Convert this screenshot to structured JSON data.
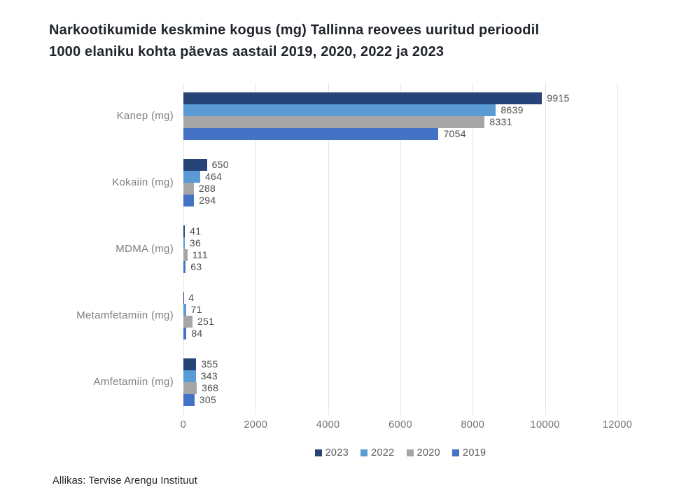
{
  "title_lines": [
    "Narkootikumide keskmine kogus (mg) Tallinna reovees uuritud perioodil",
    "1000 elaniku kohta päevas aastail 2019, 2020, 2022 ja 2023"
  ],
  "source": "Allikas: Tervise Arengu Instituut",
  "colors": {
    "grid": "#e4e4e6",
    "category_label": "#7f7f7f",
    "value_label": "#4d4d4d",
    "tick_label": "#6f6f6f",
    "legend_label": "#595959",
    "title": "#20242c"
  },
  "chart_data": {
    "type": "bar",
    "orientation": "horizontal",
    "title": "Narkootikumide keskmine kogus (mg) Tallinna reovees uuritud perioodil 1000 elaniku kohta päevas aastail 2019, 2020, 2022 ja 2023",
    "categories": [
      "Kanep (mg)",
      "Kokaiin (mg)",
      "MDMA (mg)",
      "Metamfetamiin (mg)",
      "Amfetamiin (mg)"
    ],
    "series": [
      {
        "name": "2023",
        "color": "#264478",
        "values": [
          9915,
          650,
          41,
          4,
          355
        ]
      },
      {
        "name": "2022",
        "color": "#5a9ad5",
        "values": [
          8639,
          464,
          36,
          71,
          343
        ]
      },
      {
        "name": "2020",
        "color": "#a6a6a6",
        "values": [
          8331,
          288,
          111,
          251,
          368
        ]
      },
      {
        "name": "2019",
        "color": "#4472c4",
        "values": [
          7054,
          294,
          63,
          84,
          305
        ]
      }
    ],
    "xlim": [
      0,
      12000
    ],
    "xticks": [
      0,
      2000,
      4000,
      6000,
      8000,
      10000,
      12000
    ],
    "xlabel": "",
    "ylabel": "",
    "grid": "vertical",
    "legend_position": "bottom",
    "value_labels": "end-of-bar"
  }
}
